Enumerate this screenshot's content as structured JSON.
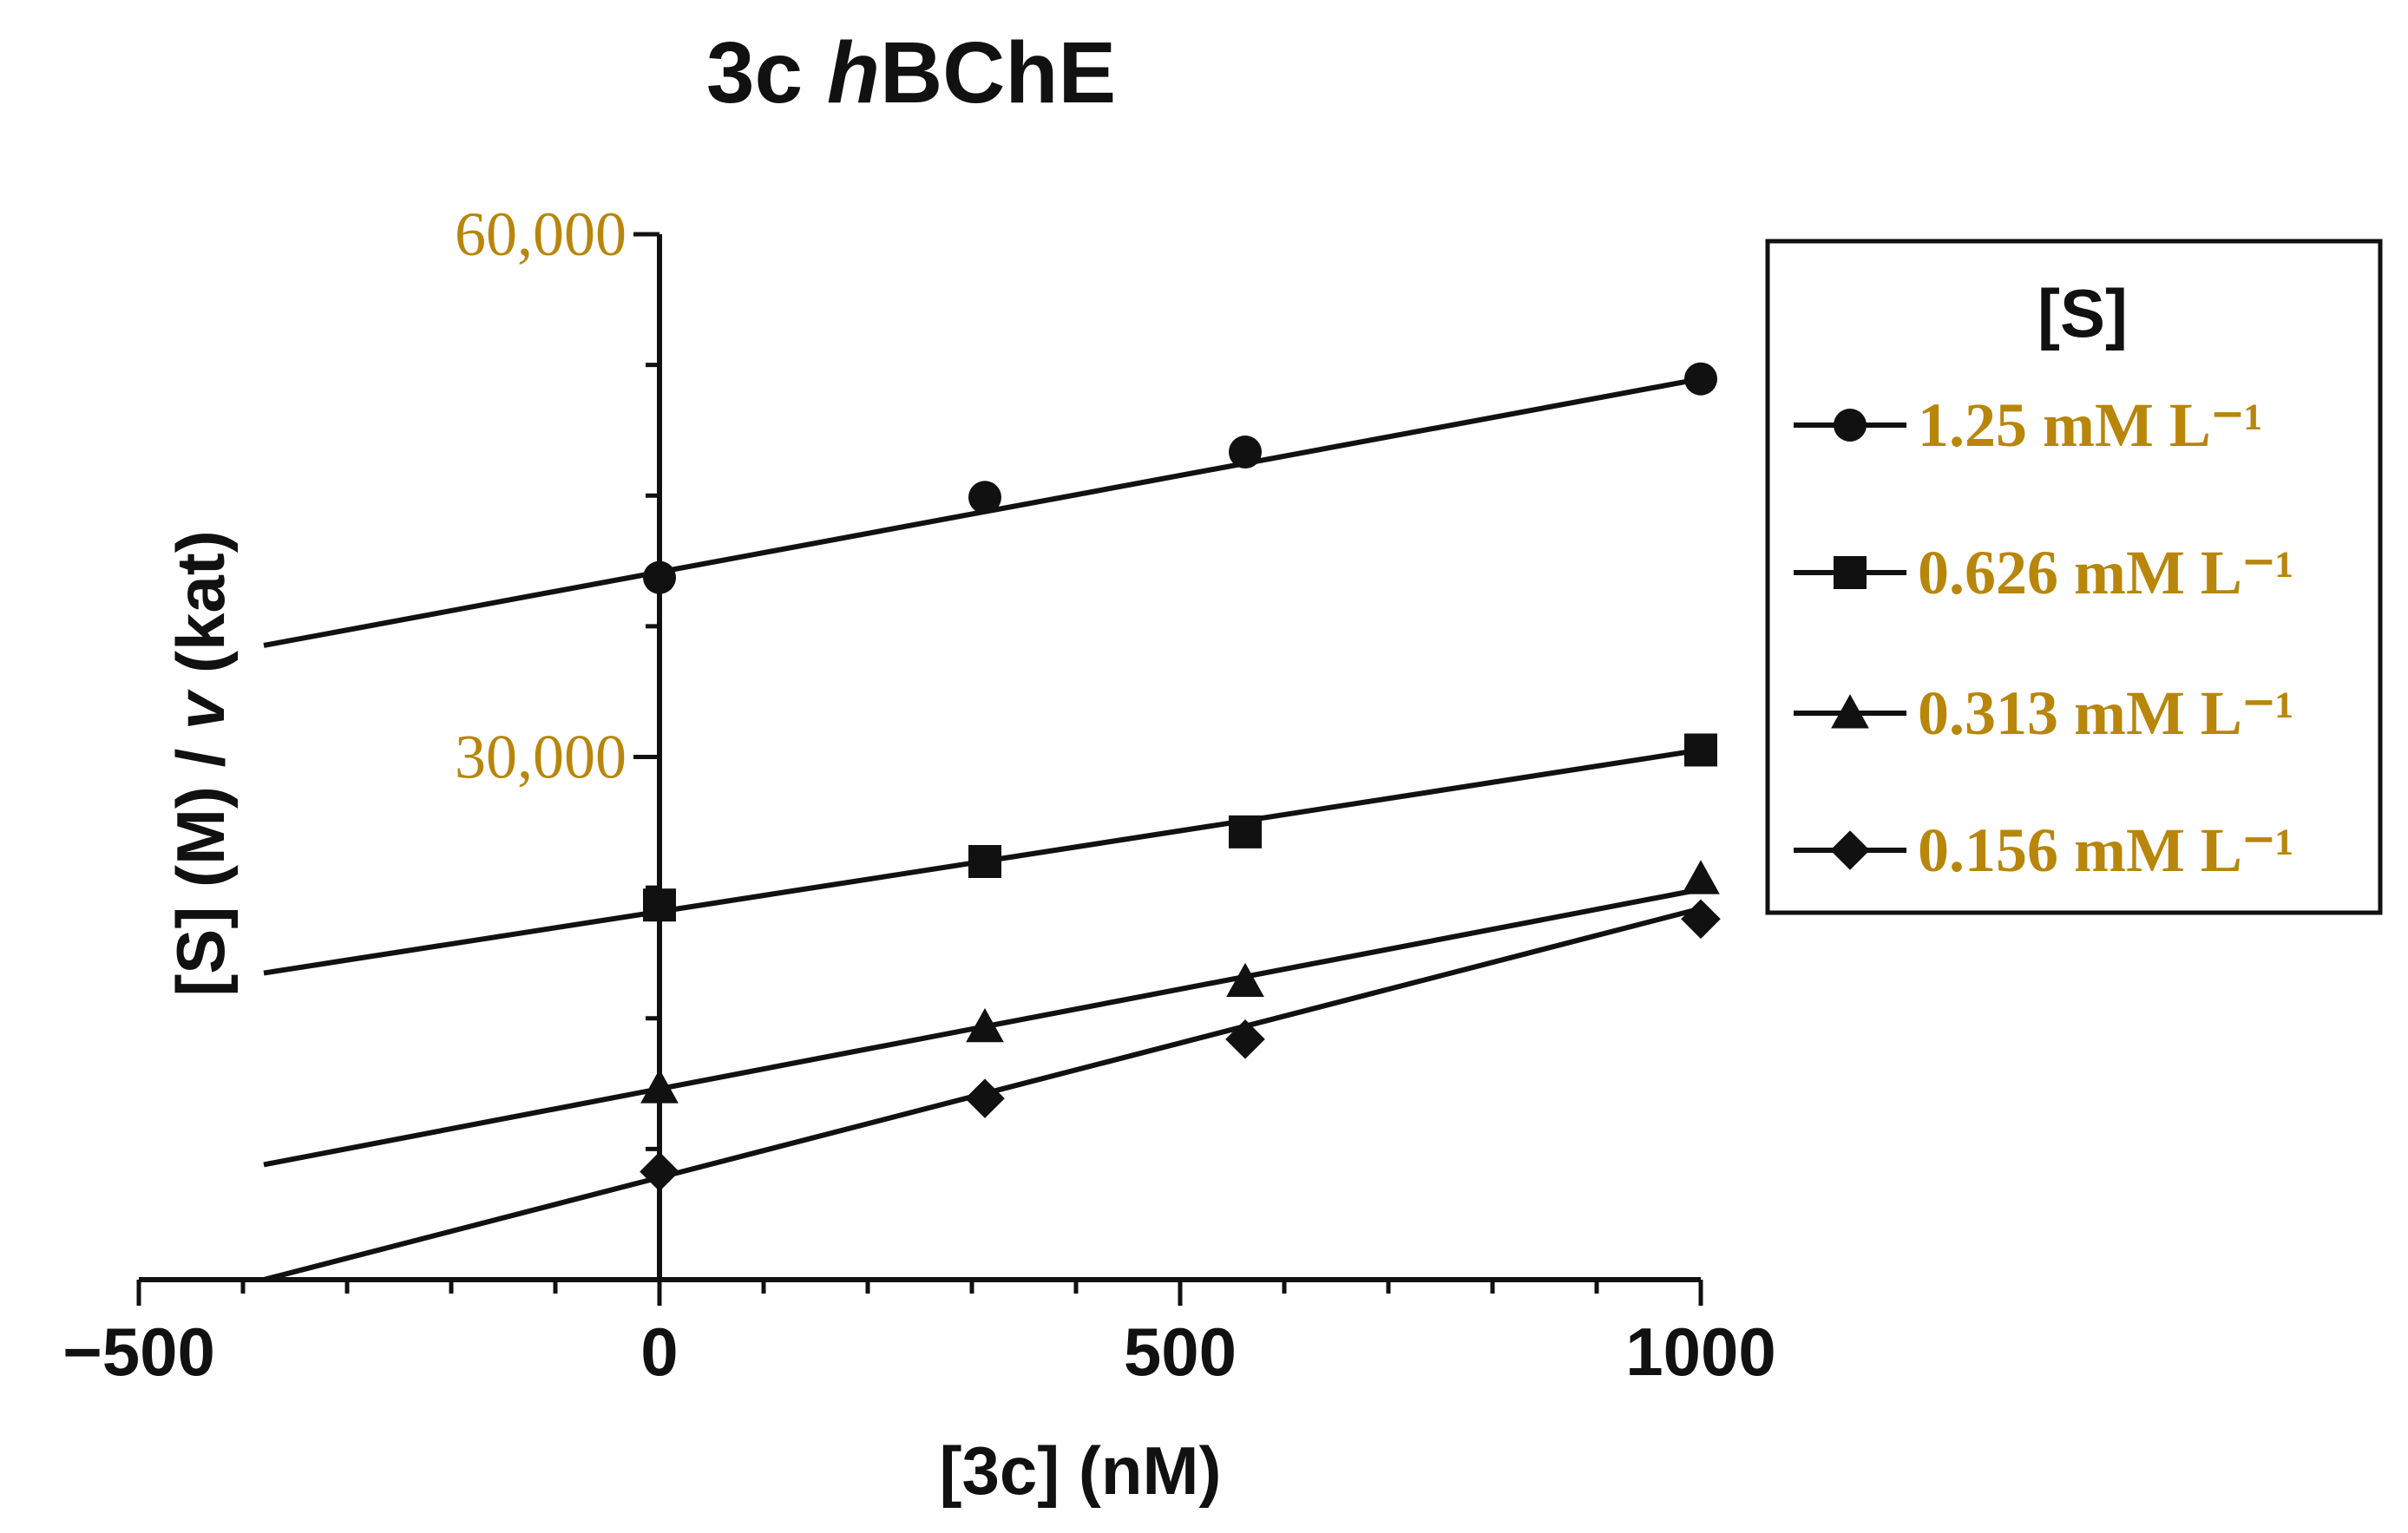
{
  "chart_data": {
    "type": "line",
    "title_prefix": "3c ",
    "title_italic": "h",
    "title_suffix": "BChE",
    "xlabel": "[3c] (nM)",
    "ylabel_pre": "[S] (M) / ",
    "ylabel_italic": "v",
    "ylabel_post": " (kat)",
    "xlim": [
      -500,
      1000
    ],
    "ylim": [
      0,
      60000
    ],
    "xticks": [
      -500,
      0,
      500,
      1000
    ],
    "xtick_labels": [
      "−500",
      "0",
      "500",
      "1000"
    ],
    "yticks": [
      30000,
      60000
    ],
    "ytick_labels": [
      "30,000",
      "60,000"
    ],
    "legend_title": "[S]",
    "colors": {
      "line": "#111111",
      "ytick_text": "#b8860b",
      "legend_text": "#b8860b"
    },
    "series": [
      {
        "name": "1.25 mM L⁻¹",
        "marker": "circle",
        "x": [
          0,
          312.5,
          562.5,
          1000
        ],
        "y": [
          40300,
          44900,
          47500,
          51700
        ],
        "fit": {
          "x": [
            -380,
            1000
          ],
          "y": [
            36400,
            51700
          ]
        }
      },
      {
        "name": "0.626 mM L⁻¹",
        "marker": "square",
        "x": [
          0,
          312.5,
          562.5,
          1000
        ],
        "y": [
          21500,
          24000,
          25700,
          30400
        ],
        "fit": {
          "x": [
            -380,
            1000
          ],
          "y": [
            17600,
            30400
          ]
        }
      },
      {
        "name": "0.313 mM L⁻¹",
        "marker": "triangle",
        "x": [
          0,
          312.5,
          562.5,
          1000
        ],
        "y": [
          11000,
          14500,
          17100,
          23000
        ],
        "fit": {
          "x": [
            -380,
            1000
          ],
          "y": [
            6600,
            22400
          ]
        }
      },
      {
        "name": "0.156 mM L⁻¹",
        "marker": "diamond",
        "x": [
          0,
          312.5,
          562.5,
          1000
        ],
        "y": [
          6200,
          10400,
          13800,
          20700
        ],
        "fit": {
          "x": [
            -380,
            1000
          ],
          "y": [
            0,
            21300
          ]
        }
      }
    ]
  }
}
